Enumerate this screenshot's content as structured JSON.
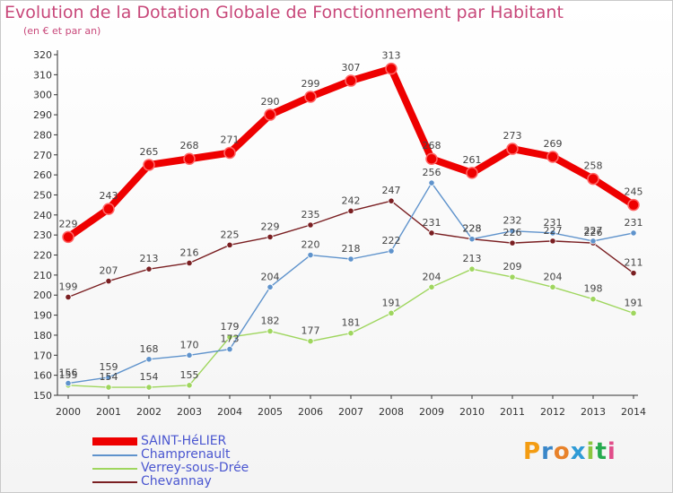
{
  "title": "Evolution de la Dotation Globale de Fonctionnement par Habitant",
  "subtitle": "(en € et par an)",
  "logo": {
    "letters": [
      "P",
      "r",
      "o",
      "x",
      "i",
      "t",
      "i"
    ],
    "colors": [
      "#f39c12",
      "#3a87c9",
      "#e8822a",
      "#2f9bd6",
      "#8cc63f",
      "#27aa4f",
      "#e14d8a"
    ]
  },
  "chart_data": {
    "type": "line",
    "x": [
      "2000",
      "2001",
      "2002",
      "2003",
      "2004",
      "2005",
      "2006",
      "2007",
      "2008",
      "2009",
      "2010",
      "2011",
      "2012",
      "2013",
      "2014"
    ],
    "ylim": [
      150,
      320
    ],
    "yticks": [
      150,
      160,
      170,
      180,
      190,
      200,
      210,
      220,
      230,
      240,
      250,
      260,
      270,
      280,
      290,
      300,
      310,
      320
    ],
    "grid": false,
    "legend_position": "bottom-left",
    "series": [
      {
        "name": "Chevannay",
        "color": "#7a1f22",
        "values": [
          199,
          207,
          213,
          216,
          225,
          229,
          235,
          242,
          247,
          231,
          228,
          226,
          227,
          226,
          211
        ],
        "labels": [
          "199",
          "207",
          "213",
          "216",
          "225",
          "229",
          "235",
          "242",
          "247",
          "231",
          "228",
          "226",
          "227",
          "226",
          "211"
        ]
      },
      {
        "name": "Verrey-sous-Drée",
        "color": "#9fd65e",
        "values": [
          155,
          154,
          154,
          155,
          179,
          182,
          177,
          181,
          191,
          204,
          213,
          209,
          204,
          198,
          191
        ],
        "labels": [
          "155",
          "154",
          "154",
          "155",
          "179",
          "182",
          "177",
          "181",
          "191",
          "204",
          "213",
          "209",
          "204",
          "198",
          "191"
        ]
      },
      {
        "name": "Champrenault",
        "color": "#5f93cc",
        "values": [
          156,
          159,
          168,
          170,
          173,
          204,
          220,
          218,
          222,
          256,
          228,
          232,
          231,
          227,
          231
        ],
        "labels": [
          "156",
          "159",
          "168",
          "170",
          "173",
          "204",
          "220",
          "218",
          "222",
          "256",
          "228",
          "232",
          "231",
          "227",
          "231"
        ]
      },
      {
        "name": "SAINT-HéLIER",
        "color": "#ee0000",
        "values": [
          229,
          243,
          265,
          268,
          271,
          290,
          299,
          307,
          313,
          268,
          261,
          273,
          269,
          258,
          245
        ],
        "labels": [
          "229",
          "243",
          "265",
          "268",
          "271",
          "290",
          "299",
          "307",
          "313",
          "268",
          "261",
          "273",
          "269",
          "258",
          "245"
        ]
      }
    ],
    "legend": [
      {
        "name": "SAINT-HéLIER",
        "color": "#ee0000",
        "thick": true
      },
      {
        "name": "Champrenault",
        "color": "#5f93cc",
        "thick": false
      },
      {
        "name": "Verrey-sous-Drée",
        "color": "#9fd65e",
        "thick": false
      },
      {
        "name": "Chevannay",
        "color": "#7a1f22",
        "thick": false
      }
    ]
  }
}
